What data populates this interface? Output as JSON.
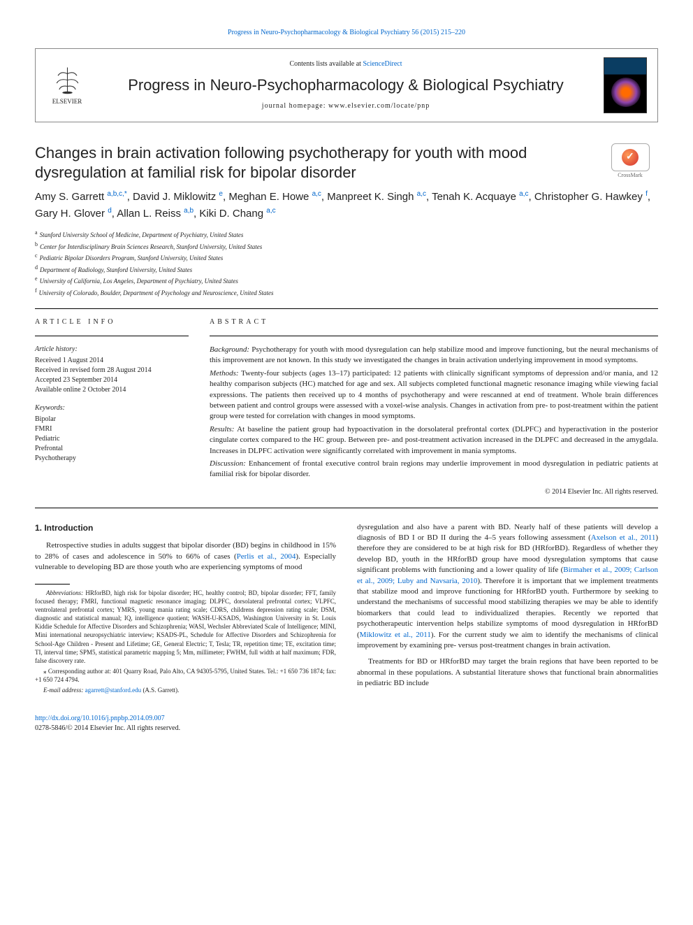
{
  "top_link": {
    "prefix": "",
    "journal": "Progress in Neuro-Psychopharmacology & Biological Psychiatry 56 (2015) 215–220"
  },
  "header": {
    "contents_prefix": "Contents lists available at ",
    "contents_link": "ScienceDirect",
    "journal_name": "Progress in Neuro-Psychopharmacology & Biological Psychiatry",
    "homepage_prefix": "journal homepage: ",
    "homepage_url": "www.elsevier.com/locate/pnp",
    "elsevier_label": "ELSEVIER"
  },
  "crossmark_label": "CrossMark",
  "article": {
    "title": "Changes in brain activation following psychotherapy for youth with mood dysregulation at familial risk for bipolar disorder",
    "authors_html": "Amy S. Garrett <sup>a,b,c,*</sup>, David J. Miklowitz <sup>e</sup>, Meghan E. Howe <sup>a,c</sup>, Manpreet K. Singh <sup>a,c</sup>, Tenah K. Acquaye <sup>a,c</sup>, Christopher G. Hawkey <sup>f</sup>, Gary H. Glover <sup>d</sup>, Allan L. Reiss <sup>a,b</sup>, Kiki D. Chang <sup>a,c</sup>",
    "affiliations": [
      {
        "sup": "a",
        "text": "Stanford University School of Medicine, Department of Psychiatry, United States"
      },
      {
        "sup": "b",
        "text": "Center for Interdisciplinary Brain Sciences Research, Stanford University, United States"
      },
      {
        "sup": "c",
        "text": "Pediatric Bipolar Disorders Program, Stanford University, United States"
      },
      {
        "sup": "d",
        "text": "Department of Radiology, Stanford University, United States"
      },
      {
        "sup": "e",
        "text": "University of California, Los Angeles, Department of Psychiatry, United States"
      },
      {
        "sup": "f",
        "text": "University of Colorado, Boulder, Department of Psychology and Neuroscience, United States"
      }
    ]
  },
  "article_info": {
    "label": "ARTICLE INFO",
    "history_label": "Article history:",
    "history": [
      "Received 1 August 2014",
      "Received in revised form 28 August 2014",
      "Accepted 23 September 2014",
      "Available online 2 October 2014"
    ],
    "keywords_label": "Keywords:",
    "keywords": [
      "Bipolar",
      "FMRI",
      "Pediatric",
      "Prefrontal",
      "Psychotherapy"
    ]
  },
  "abstract": {
    "label": "ABSTRACT",
    "paragraphs": [
      {
        "label": "Background:",
        "text": " Psychotherapy for youth with mood dysregulation can help stabilize mood and improve functioning, but the neural mechanisms of this improvement are not known. In this study we investigated the changes in brain activation underlying improvement in mood symptoms."
      },
      {
        "label": "Methods:",
        "text": " Twenty-four subjects (ages 13–17) participated: 12 patients with clinically significant symptoms of depression and/or mania, and 12 healthy comparison subjects (HC) matched for age and sex. All subjects completed functional magnetic resonance imaging while viewing facial expressions. The patients then received up to 4 months of psychotherapy and were rescanned at end of treatment. Whole brain differences between patient and control groups were assessed with a voxel-wise analysis. Changes in activation from pre- to post-treatment within the patient group were tested for correlation with changes in mood symptoms."
      },
      {
        "label": "Results:",
        "text": " At baseline the patient group had hypoactivation in the dorsolateral prefrontal cortex (DLPFC) and hyperactivation in the posterior cingulate cortex compared to the HC group. Between pre- and post-treatment activation increased in the DLPFC and decreased in the amygdala. Increases in DLPFC activation were significantly correlated with improvement in mania symptoms."
      },
      {
        "label": "Discussion:",
        "text": " Enhancement of frontal executive control brain regions may underlie improvement in mood dysregulation in pediatric patients at familial risk for bipolar disorder."
      }
    ],
    "copyright": "© 2014 Elsevier Inc. All rights reserved."
  },
  "introduction": {
    "heading": "1. Introduction",
    "left_p1": "Retrospective studies in adults suggest that bipolar disorder (BD) begins in childhood in 15% to 28% of cases and adolescence in 50% to 66% of cases (",
    "left_cite1": "Perlis et al., 2004",
    "left_p1b": "). Especially vulnerable to developing BD are those youth who are experiencing symptoms of mood",
    "right_p1": "dysregulation and also have a parent with BD. Nearly half of these patients will develop a diagnosis of BD I or BD II during the 4–5 years following assessment (",
    "right_cite1": "Axelson et al., 2011",
    "right_p1b": ") therefore they are considered to be at high risk for BD (HRforBD). Regardless of whether they develop BD, youth in the HRforBD group have mood dysregulation symptoms that cause significant problems with functioning and a lower quality of life (",
    "right_cite2": "Birmaher et al., 2009; Carlson et al., 2009; Luby and Navsaria, 2010",
    "right_p1c": "). Therefore it is important that we implement treatments that stabilize mood and improve functioning for HRforBD youth. Furthermore by seeking to understand the mechanisms of successful mood stabilizing therapies we may be able to identify biomarkers that could lead to individualized therapies. Recently we reported that psychotherapeutic intervention helps stabilize symptoms of mood dysregulation in HRforBD (",
    "right_cite3": "Miklowitz et al., 2011",
    "right_p1d": "). For the current study we aim to identify the mechanisms of clinical improvement by examining pre- versus post-treatment changes in brain activation.",
    "right_p2": "Treatments for BD or HRforBD may target the brain regions that have been reported to be abnormal in these populations. A substantial literature shows that functional brain abnormalities in pediatric BD include"
  },
  "footnotes": {
    "abbrev_label": "Abbreviations:",
    "abbrev_text": " HRforBD, high risk for bipolar disorder; HC, healthy control; BD, bipolar disorder; FFT, family focused therapy; FMRI, functional magnetic resonance imaging; DLPFC, dorsolateral prefrontal cortex; VLPFC, ventrolateral prefrontal cortex; YMRS, young mania rating scale; CDRS, childrens depression rating scale; DSM, diagnostic and statistical manual; IQ, intelligence quotient; WASH-U-KSADS, Washington University in St. Louis Kiddie Schedule for Affective Disorders and Schizophrenia; WASI, Wechsler Abbreviated Scale of Intelligence; MINI, Mini international neuropsychiatric interview; KSADS-PL, Schedule for Affective Disorders and Schizophrenia for School-Age Children - Present and Lifetime; GE, General Electric; T, Tesla; TR, repetition time; TE, excitation time; TI, interval time; SPM5, statistical parametric mapping 5; Mm, millimeter; FWHM, full width at half maximum; FDR, false discovery rate.",
    "corr_label": "⁎ Corresponding author at: ",
    "corr_addr": "401 Quarry Road, Palo Alto, CA 94305-5795, United States. Tel.: +1 650 736 1874; fax: +1 650 724 4794.",
    "email_label": "E-mail address: ",
    "email": "agarrett@stanford.edu",
    "email_suffix": " (A.S. Garrett)."
  },
  "doi": {
    "url": "http://dx.doi.org/10.1016/j.pnpbp.2014.09.007",
    "issn_line": "0278-5846/© 2014 Elsevier Inc. All rights reserved."
  },
  "colors": {
    "link": "#0066cc",
    "text": "#222222",
    "rule": "#000000"
  }
}
